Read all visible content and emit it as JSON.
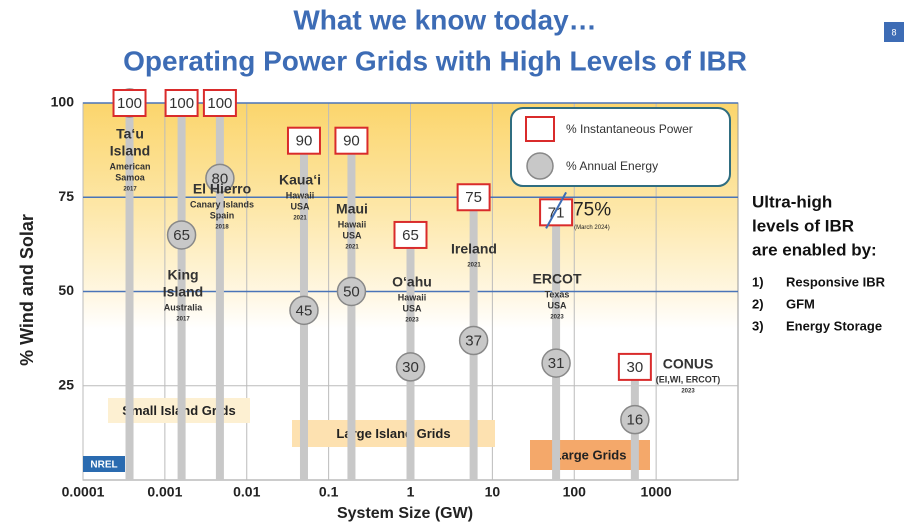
{
  "chart_data": {
    "type": "scatter",
    "title": "What we know today…",
    "subtitle": "Operating Power Grids with High Levels of IBR",
    "page_number": "8",
    "x_label": "System Size (GW)",
    "y_label": "% Wind and Solar",
    "x_log": true,
    "grid": true,
    "xlim": [
      0.0001,
      10000
    ],
    "xticks": [
      0.0001,
      0.001,
      0.01,
      0.1,
      1,
      10,
      100,
      1000
    ],
    "ylim": [
      0,
      100
    ],
    "yticks": [
      25,
      50,
      75,
      100
    ],
    "legend_position": "upper right",
    "x": [
      0.00037,
      0.0016,
      0.0047,
      0.05,
      0.19,
      1,
      5.9,
      60,
      550
    ],
    "series": [
      {
        "name": "% Instantaneous Power",
        "color": "#d92b2b",
        "values": [
          100,
          100,
          100,
          90,
          90,
          65,
          75,
          71,
          30
        ]
      },
      {
        "name": "% Annual Energy",
        "color": "#c8c8c8",
        "values": [
          100,
          65,
          80,
          45,
          50,
          30,
          37,
          31,
          16
        ]
      }
    ],
    "grids": [
      {
        "name_lines": [
          "Ta‘u",
          "Island"
        ],
        "detail_lines": [
          "American",
          "Samoa"
        ],
        "year": "2017"
      },
      {
        "name_lines": [
          "King",
          "Island"
        ],
        "detail_lines": [
          "Australia"
        ],
        "year": "2017"
      },
      {
        "name_lines": [
          "El Hierro"
        ],
        "detail_lines": [
          "Canary Islands",
          "Spain"
        ],
        "year": "2018"
      },
      {
        "name_lines": [
          "Kaua‘i"
        ],
        "detail_lines": [
          "Hawaii",
          "USA"
        ],
        "year": "2021"
      },
      {
        "name_lines": [
          "Maui"
        ],
        "detail_lines": [
          "Hawaii",
          "USA"
        ],
        "year": "2021"
      },
      {
        "name_lines": [
          "O‘ahu"
        ],
        "detail_lines": [
          "Hawaii",
          "USA"
        ],
        "year": "2023"
      },
      {
        "name_lines": [
          "Ireland"
        ],
        "detail_lines": [],
        "year": "2021"
      },
      {
        "name_lines": [
          "ERCOT"
        ],
        "detail_lines": [
          "Texas",
          "USA"
        ],
        "year": "2023"
      },
      {
        "name_lines": [
          "CONUS"
        ],
        "detail_lines": [
          "(EI,WI, ERCOT)"
        ],
        "year": "2023"
      }
    ],
    "update": {
      "index": 7,
      "value": 75,
      "value_label": "75%",
      "note": "(March 2024)"
    },
    "group_labels": [
      "Small Island Grids",
      "Large Island Grids",
      "Large Grids"
    ],
    "logo": "NREL",
    "side_heading": [
      "Ultra-high",
      "levels of IBR",
      "are enabled by:"
    ],
    "side_list": [
      {
        "num": "1)",
        "text": "Responsive IBR"
      },
      {
        "num": "2)",
        "text": "GFM"
      },
      {
        "num": "3)",
        "text": "Energy Storage"
      }
    ]
  }
}
